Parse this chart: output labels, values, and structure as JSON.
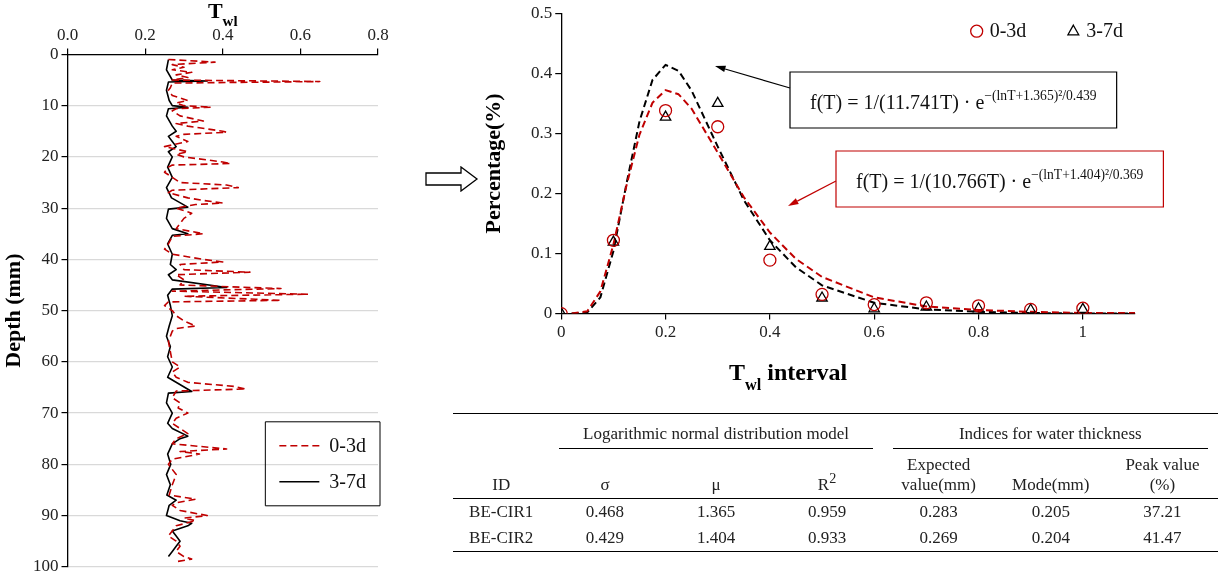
{
  "chart_data": [
    {
      "type": "line",
      "xlabel": "T$_{wl}$",
      "ylabel": "Depth (mm)",
      "xlim": [
        0,
        0.8
      ],
      "xticks": [
        {
          "value": 0,
          "label": "0.0"
        },
        {
          "value": 0.2,
          "label": "0.2"
        },
        {
          "value": 0.4,
          "label": "0.4"
        },
        {
          "value": 0.6,
          "label": "0.6"
        },
        {
          "value": 0.8,
          "label": "0.8"
        }
      ],
      "ylim": [
        100,
        0
      ],
      "yticks": [
        0,
        10,
        20,
        30,
        40,
        50,
        60,
        70,
        80,
        90,
        100
      ],
      "grid": "y",
      "legend": "bottom right",
      "marker": "none",
      "series": [
        {
          "name": "0-3d",
          "color": "#c00000",
          "line_style": "dashed",
          "x": [
            0.26,
            0.38,
            0.27,
            0.3,
            0.27,
            0.32,
            0.28,
            0.31,
            0.27,
            0.65,
            0.27,
            0.265,
            0.26,
            0.27,
            0.29,
            0.31,
            0.28,
            0.3,
            0.37,
            0.28,
            0.27,
            0.29,
            0.35,
            0.28,
            0.31,
            0.4,
            0.41,
            0.3,
            0.28,
            0.31,
            0.25,
            0.31,
            0.28,
            0.3,
            0.4,
            0.42,
            0.27,
            0.26,
            0.25,
            0.27,
            0.29,
            0.41,
            0.44,
            0.27,
            0.26,
            0.31,
            0.35,
            0.4,
            0.33,
            0.28,
            0.32,
            0.3,
            0.29,
            0.28,
            0.35,
            0.27,
            0.26,
            0.25,
            0.27,
            0.35,
            0.4,
            0.29,
            0.3,
            0.47,
            0.28,
            0.3,
            0.29,
            0.55,
            0.27,
            0.62,
            0.3,
            0.55,
            0.26,
            0.25,
            0.27,
            0.28,
            0.3,
            0.33,
            0.28,
            0.27,
            0.26,
            0.265,
            0.27,
            0.29,
            0.27,
            0.28,
            0.31,
            0.43,
            0.46,
            0.28,
            0.27,
            0.29,
            0.285,
            0.31,
            0.28,
            0.27,
            0.29,
            0.31,
            0.28,
            0.27,
            0.41,
            0.29,
            0.34,
            0.27,
            0.26,
            0.28,
            0.27,
            0.262,
            0.33,
            0.28,
            0.27,
            0.29,
            0.36,
            0.3,
            0.33,
            0.28,
            0.27,
            0.26,
            0.28,
            0.29,
            0.28,
            0.3,
            0.32,
            0.28
          ],
          "values": [
            1,
            1.5,
            2,
            2.5,
            3,
            3.5,
            4,
            4.5,
            5,
            5.3,
            5.6,
            6.5,
            7,
            8,
            8.5,
            9,
            9.5,
            10,
            10.3,
            10.6,
            11,
            12,
            13,
            13.5,
            14,
            15,
            15.2,
            15.6,
            16,
            17,
            18,
            19,
            19.5,
            20,
            21,
            21.3,
            21.6,
            22,
            23,
            24,
            25,
            25.5,
            26,
            26.5,
            27,
            28,
            28.5,
            29,
            29.3,
            30,
            31,
            32,
            33,
            34,
            35,
            35.5,
            37,
            38,
            39,
            40,
            40.5,
            41,
            42,
            42.5,
            43,
            44,
            45,
            45.7,
            46.2,
            46.8,
            47.2,
            48,
            48.3,
            49,
            50,
            51,
            52,
            53,
            53.5,
            54,
            56,
            58,
            60,
            61,
            62,
            63,
            64,
            64.8,
            65.3,
            65.7,
            67,
            68,
            69,
            70,
            71,
            72,
            73,
            74,
            75,
            76,
            77,
            77.5,
            78,
            79,
            80,
            82,
            84,
            86,
            86.8,
            87.5,
            88,
            89,
            90,
            90.5,
            91,
            92,
            93,
            94,
            95,
            96,
            97,
            98,
            98.5,
            99
          ]
        },
        {
          "name": "3-7d",
          "color": "#000000",
          "line_style": "solid",
          "x": [
            0.26,
            0.255,
            0.27,
            0.36,
            0.26,
            0.255,
            0.262,
            0.27,
            0.31,
            0.26,
            0.255,
            0.27,
            0.28,
            0.26,
            0.27,
            0.28,
            0.26,
            0.27,
            0.258,
            0.27,
            0.255,
            0.268,
            0.31,
            0.26,
            0.255,
            0.27,
            0.31,
            0.27,
            0.258,
            0.27,
            0.265,
            0.28,
            0.26,
            0.27,
            0.41,
            0.27,
            0.258,
            0.265,
            0.27,
            0.262,
            0.255,
            0.265,
            0.258,
            0.27,
            0.258,
            0.32,
            0.26,
            0.255,
            0.27,
            0.258,
            0.27,
            0.31,
            0.29,
            0.27,
            0.258,
            0.266,
            0.255,
            0.265,
            0.256,
            0.28,
            0.262,
            0.255,
            0.29,
            0.32,
            0.31,
            0.27,
            0.28,
            0.29,
            0.28,
            0.27,
            0.26
          ],
          "values": [
            1,
            3,
            5,
            5.2,
            5.4,
            7,
            9,
            10,
            10.3,
            10.6,
            12,
            14,
            15,
            16,
            17,
            18,
            19,
            20,
            22,
            24,
            26,
            28,
            29.8,
            30.2,
            32,
            34,
            35,
            35.3,
            37,
            39,
            41,
            42,
            43,
            44,
            45.5,
            45.8,
            47,
            49,
            51,
            53,
            55,
            57,
            59,
            61,
            63,
            65.8,
            66.1,
            68,
            70,
            72,
            73,
            74.5,
            75,
            76,
            78,
            80,
            82,
            84,
            86,
            87,
            88,
            90,
            91,
            91.5,
            92,
            93,
            94,
            95,
            96,
            97,
            98
          ]
        }
      ]
    },
    {
      "type": "scatter",
      "xlabel": "T$_{wl}$ interval",
      "ylabel": "Percentage(%)",
      "xlim": [
        0,
        1.1
      ],
      "xticks": [
        0,
        0.2,
        0.4,
        0.6,
        0.8,
        1
      ],
      "ylim": [
        0,
        0.5
      ],
      "yticks": [
        0,
        0.1,
        0.2,
        0.3,
        0.4,
        0.5
      ],
      "legend": "top right",
      "x": [
        0,
        0.1,
        0.2,
        0.3,
        0.4,
        0.5,
        0.6,
        0.7,
        0.8,
        0.9,
        1
      ],
      "series": [
        {
          "name": "0-3d",
          "color": "#c00000",
          "marker": "circle",
          "values": [
            0,
            0.122,
            0.338,
            0.311,
            0.089,
            0.032,
            0.015,
            0.018,
            0.013,
            0.007,
            0.009
          ]
        },
        {
          "name": "3-7d",
          "color": "#000000",
          "marker": "triangle",
          "values": [
            0,
            0.119,
            0.327,
            0.35,
            0.112,
            0.026,
            0.008,
            0.011,
            0.008,
            0.006,
            0.007
          ]
        },
        {
          "type": "line",
          "color": "#c00000",
          "marker": "none",
          "line_style": "dashed",
          "x": [
            0.02,
            0.05,
            0.075,
            0.1,
            0.125,
            0.15,
            0.175,
            0.2,
            0.225,
            0.25,
            0.3,
            0.35,
            0.4,
            0.45,
            0.5,
            0.6,
            0.7,
            0.8,
            0.9,
            1.0,
            1.1
          ],
          "values": [
            0,
            0.004,
            0.037,
            0.115,
            0.213,
            0.298,
            0.351,
            0.372,
            0.365,
            0.341,
            0.268,
            0.194,
            0.135,
            0.091,
            0.061,
            0.027,
            0.012,
            0.006,
            0.003,
            0.001,
            0.001
          ]
        },
        {
          "type": "line",
          "color": "#000000",
          "marker": "none",
          "line_style": "dashed",
          "x": [
            0.02,
            0.05,
            0.075,
            0.1,
            0.125,
            0.15,
            0.175,
            0.2,
            0.225,
            0.25,
            0.3,
            0.35,
            0.4,
            0.45,
            0.5,
            0.6,
            0.7,
            0.8,
            0.9,
            1.0,
            1.1
          ],
          "values": [
            0,
            0.002,
            0.027,
            0.104,
            0.216,
            0.32,
            0.389,
            0.414,
            0.404,
            0.371,
            0.278,
            0.189,
            0.122,
            0.077,
            0.047,
            0.018,
            0.007,
            0.003,
            0.001,
            0,
            0
          ]
        }
      ],
      "annotations": [
        "f(T) = 1/(11.741T) · e$^{−(lnT+1.365)²/0.439}$",
        "f(T) = 1/(10.766T) · e$^{−(lnT+1.404)²/0.369}$"
      ]
    },
    {
      "type": "other",
      "ylabel": "ID",
      "categories": [
        "σ",
        "μ",
        "R$^{2}$",
        "Expected value(mm)",
        "Mode(mm)",
        "Peak value (%)"
      ],
      "y_categories": [
        "BE-CIR1",
        "BE-CIR2"
      ],
      "cell_labels": [
        [
          "0.468",
          "1.365",
          "0.959",
          "0.283",
          "0.205",
          "37.21"
        ],
        [
          "0.429",
          "1.404",
          "0.933",
          "0.269",
          "0.204",
          "41.47"
        ]
      ],
      "annotations": [
        "Logarithmic normal distribution model",
        "Indices for water thickness"
      ]
    }
  ]
}
